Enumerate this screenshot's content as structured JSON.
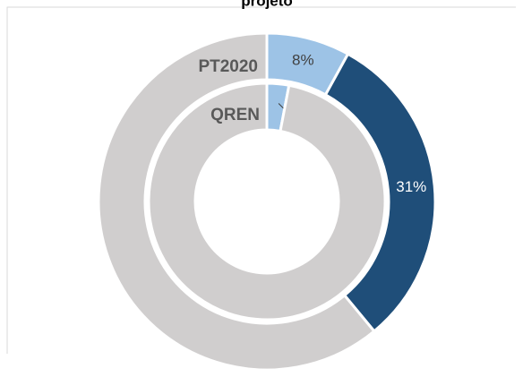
{
  "chart_data": {
    "type": "donut",
    "title": "projeto",
    "series": [
      {
        "name": "PT2020",
        "values": [
          8,
          31,
          61
        ],
        "value_labels": [
          "8%",
          "31%",
          null
        ],
        "colors": [
          "#9dc3e6",
          "#1f4e79",
          "#d0cece"
        ]
      },
      {
        "name": "QREN",
        "values": [
          3,
          97
        ],
        "value_labels": [
          "3%",
          null
        ],
        "colors": [
          "#9dc3e6",
          "#d0cece"
        ]
      }
    ]
  }
}
